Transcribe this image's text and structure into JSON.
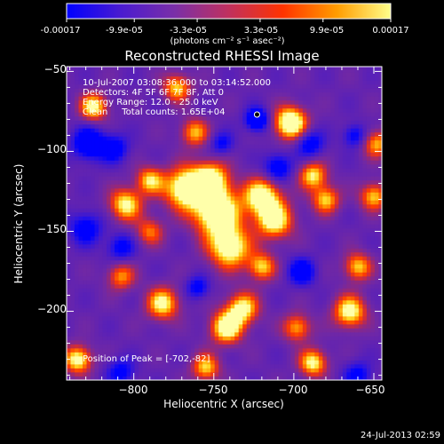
{
  "colorbar": {
    "tick_labels": [
      "-0.00017",
      "-9.9e-05",
      "-3.3e-05",
      "3.3e-05",
      "9.9e-05",
      "0.00017"
    ],
    "range": [
      -0.00017,
      0.00017
    ],
    "colors": [
      "#0000ff",
      "#4a1bd0",
      "#7a2fa8",
      "#c0305e",
      "#ff3300",
      "#ff9c00",
      "#ffff8a"
    ]
  },
  "chart_data": {
    "type": "heatmap",
    "title": "Reconstructed RHESSI Image",
    "units_label": "(photons cm⁻² s⁻¹ asec⁻²)",
    "xlabel": "Heliocentric X (arcsec)",
    "ylabel": "Heliocentric Y (arcsec)",
    "xlim": [
      -842,
      -645
    ],
    "ylim": [
      -243,
      -47
    ],
    "x_ticks": [
      {
        "value": -800,
        "label": "−800"
      },
      {
        "value": -750,
        "label": "−750"
      },
      {
        "value": -700,
        "label": "−700"
      },
      {
        "value": -650,
        "label": "−650"
      }
    ],
    "y_ticks": [
      {
        "value": -50,
        "label": "−50"
      },
      {
        "value": -100,
        "label": "−100"
      },
      {
        "value": -150,
        "label": "−150"
      },
      {
        "value": -200,
        "label": "−200"
      }
    ],
    "peak": {
      "x": -702,
      "y": -82
    },
    "peak_marker": {
      "x": -723,
      "y": -77
    },
    "bright_regions": [
      {
        "x": -768,
        "y": -123,
        "amp": 0.85,
        "s": 9
      },
      {
        "x": -752,
        "y": -118,
        "amp": 0.8,
        "s": 8
      },
      {
        "x": -748,
        "y": -138,
        "amp": 0.95,
        "s": 10
      },
      {
        "x": -740,
        "y": -160,
        "amp": 0.8,
        "s": 9
      },
      {
        "x": -732,
        "y": -198,
        "amp": 0.7,
        "s": 7
      },
      {
        "x": -742,
        "y": -210,
        "amp": 0.8,
        "s": 7
      },
      {
        "x": -720,
        "y": -128,
        "amp": 0.8,
        "s": 8
      },
      {
        "x": -712,
        "y": -143,
        "amp": 0.75,
        "s": 8
      },
      {
        "x": -805,
        "y": -133,
        "amp": 0.7,
        "s": 7
      },
      {
        "x": -790,
        "y": -118,
        "amp": 0.6,
        "s": 6
      },
      {
        "x": -702,
        "y": -82,
        "amp": 0.95,
        "s": 7
      },
      {
        "x": -688,
        "y": -115,
        "amp": 0.65,
        "s": 6
      },
      {
        "x": -680,
        "y": -130,
        "amp": 0.6,
        "s": 6
      },
      {
        "x": -650,
        "y": -128,
        "amp": 0.6,
        "s": 6
      },
      {
        "x": -665,
        "y": -200,
        "amp": 0.75,
        "s": 7
      },
      {
        "x": -660,
        "y": -172,
        "amp": 0.6,
        "s": 6
      },
      {
        "x": -698,
        "y": -210,
        "amp": 0.55,
        "s": 6
      },
      {
        "x": -688,
        "y": -232,
        "amp": 0.7,
        "s": 6
      },
      {
        "x": -825,
        "y": -72,
        "amp": 0.7,
        "s": 6
      },
      {
        "x": -835,
        "y": -230,
        "amp": 0.75,
        "s": 6
      },
      {
        "x": -782,
        "y": -195,
        "amp": 0.7,
        "s": 7
      },
      {
        "x": -720,
        "y": -172,
        "amp": 0.6,
        "s": 6
      },
      {
        "x": -773,
        "y": -60,
        "amp": 0.6,
        "s": 6
      },
      {
        "x": -762,
        "y": -88,
        "amp": 0.55,
        "s": 6
      },
      {
        "x": -755,
        "y": -235,
        "amp": 0.6,
        "s": 6
      },
      {
        "x": -808,
        "y": -178,
        "amp": 0.5,
        "s": 6
      },
      {
        "x": -648,
        "y": -95,
        "amp": 0.55,
        "s": 6
      },
      {
        "x": -790,
        "y": -150,
        "amp": 0.45,
        "s": 6
      }
    ],
    "dark_regions": [
      {
        "x": -828,
        "y": -95,
        "amp": -0.6,
        "s": 7
      },
      {
        "x": -830,
        "y": -148,
        "amp": -0.45,
        "s": 7
      },
      {
        "x": -812,
        "y": -98,
        "amp": -0.45,
        "s": 6
      },
      {
        "x": -808,
        "y": -160,
        "amp": -0.4,
        "s": 6
      },
      {
        "x": -723,
        "y": -80,
        "amp": -0.65,
        "s": 5
      },
      {
        "x": -690,
        "y": -95,
        "amp": -0.45,
        "s": 6
      },
      {
        "x": -710,
        "y": -110,
        "amp": -0.5,
        "s": 6
      },
      {
        "x": -662,
        "y": -90,
        "amp": -0.4,
        "s": 5
      },
      {
        "x": -695,
        "y": -175,
        "amp": -0.5,
        "s": 6
      },
      {
        "x": -660,
        "y": -240,
        "amp": -0.4,
        "s": 6
      },
      {
        "x": -808,
        "y": -238,
        "amp": -0.4,
        "s": 6
      },
      {
        "x": -760,
        "y": -185,
        "amp": -0.4,
        "s": 5
      },
      {
        "x": -745,
        "y": -95,
        "amp": -0.35,
        "s": 5
      }
    ]
  },
  "annotations": {
    "time": "10-Jul-2007 03:08:36.000 to 03:14:52.000",
    "detectors": "Detectors: 4F 5F 6F 7F 8F, Att 0",
    "energy": "Energy Range: 12.0 - 25.0 keV",
    "clean": "Clean     Total counts: 1.65E+04",
    "peak_text": "Position of Peak = [-702,-82]"
  },
  "footer": {
    "date": "24-Jul-2013 02:59"
  }
}
